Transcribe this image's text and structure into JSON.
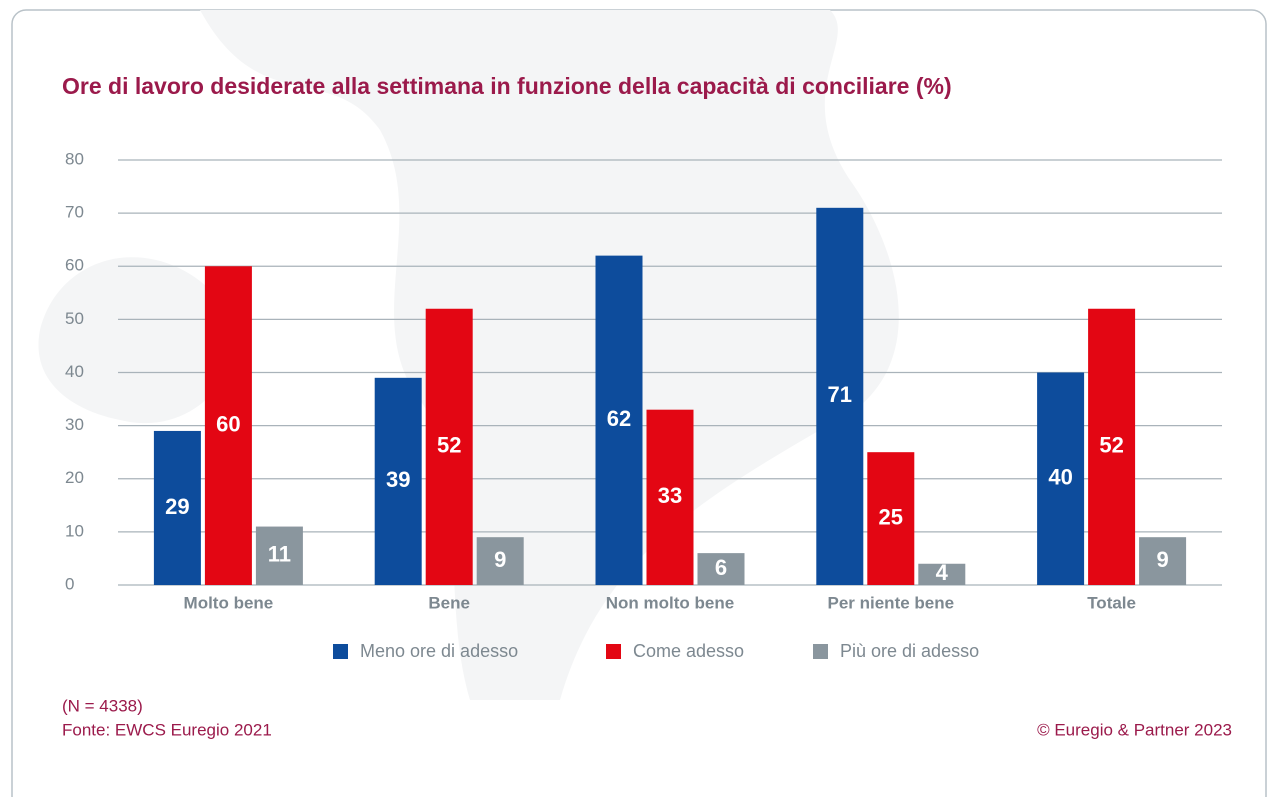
{
  "chart_data": {
    "type": "bar",
    "title": "Ore di lavoro desiderate alla settimana in funzione della capacità di conciliare (%)",
    "categories": [
      "Molto bene",
      "Bene",
      "Non molto bene",
      "Per niente bene",
      "Totale"
    ],
    "series": [
      {
        "name": "Meno ore di adesso",
        "color": "#0d4c9c",
        "values": [
          29,
          39,
          62,
          71,
          40
        ]
      },
      {
        "name": "Come adesso",
        "color": "#e30613",
        "values": [
          60,
          52,
          33,
          25,
          52
        ]
      },
      {
        "name": "Più ore di adesso",
        "color": "#8a969e",
        "values": [
          11,
          9,
          6,
          4,
          9
        ]
      }
    ],
    "ylim": [
      0,
      80
    ],
    "yticks": [
      0,
      10,
      20,
      30,
      40,
      50,
      60,
      70,
      80
    ],
    "grid": true,
    "legend": "bottom",
    "note": "(N = 4338)",
    "source": "Fonte: EWCS Euregio 2021",
    "copyright": "© Euregio & Partner 2023"
  }
}
